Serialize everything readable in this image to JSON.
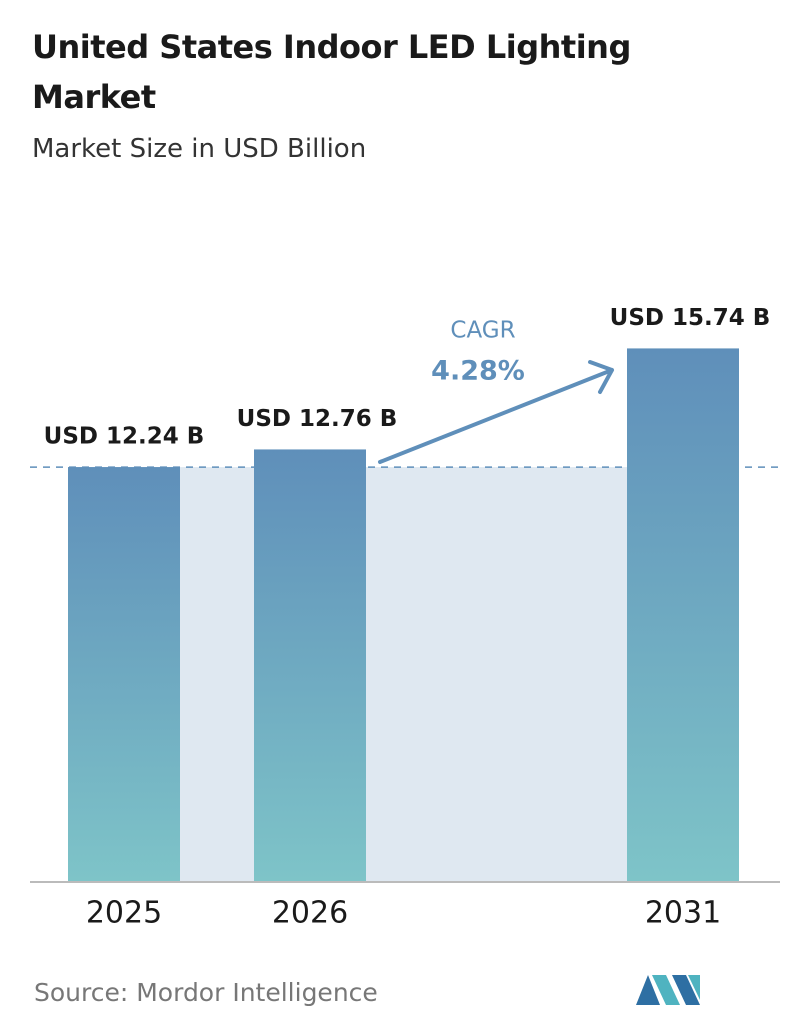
{
  "chart_data": {
    "type": "bar",
    "title": "United States Indoor LED Lighting Market",
    "subtitle": "Market Size in USD Billion",
    "categories": [
      "2025",
      "2026",
      "2031"
    ],
    "values": [
      12.24,
      12.76,
      15.74
    ],
    "value_labels": [
      "USD 12.24 B",
      "USD 12.76 B",
      "USD 15.74 B"
    ],
    "annotation": {
      "label": "CAGR",
      "value": "4.28%"
    },
    "source": "Source: Mordor Intelligence"
  }
}
